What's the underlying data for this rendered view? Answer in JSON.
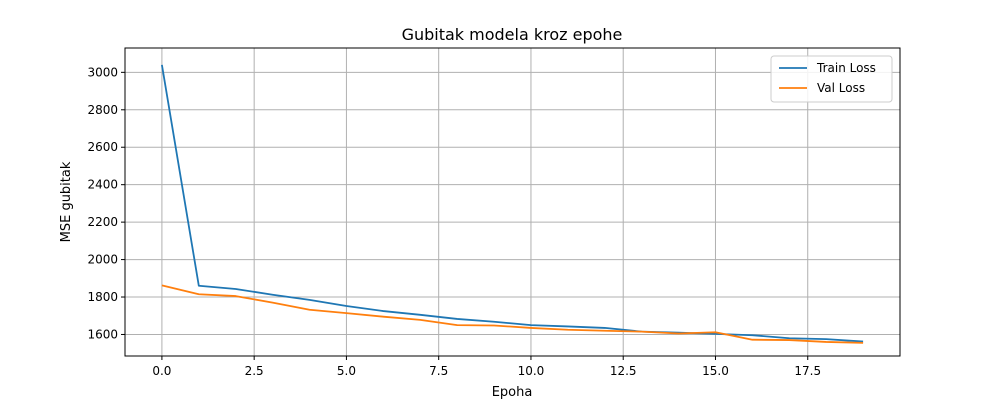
{
  "chart_data": {
    "type": "line",
    "title": "Gubitak modela kroz epohe",
    "xlabel": "Epoha",
    "ylabel": "MSE gubitak",
    "xlim": [
      -1,
      20
    ],
    "ylim": [
      1485,
      3130
    ],
    "xticks": [
      0,
      2.5,
      5,
      7.5,
      10,
      12.5,
      15,
      17.5
    ],
    "xtick_labels": [
      "0.0",
      "2.5",
      "5.0",
      "7.5",
      "10.0",
      "12.5",
      "15.0",
      "17.5"
    ],
    "yticks": [
      1600,
      1800,
      2000,
      2200,
      2400,
      2600,
      2800,
      3000
    ],
    "ytick_labels": [
      "1600",
      "1800",
      "2000",
      "2200",
      "2400",
      "2600",
      "2800",
      "3000"
    ],
    "grid": true,
    "legend_position": "top-right",
    "x": [
      0,
      1,
      2,
      3,
      4,
      5,
      6,
      7,
      8,
      9,
      10,
      11,
      12,
      13,
      14,
      15,
      16,
      17,
      18,
      19
    ],
    "series": [
      {
        "name": "Train Loss",
        "color": "#1f77b4",
        "values": [
          3040,
          1860,
          1843,
          1812,
          1785,
          1752,
          1725,
          1705,
          1683,
          1668,
          1650,
          1643,
          1635,
          1615,
          1610,
          1603,
          1596,
          1580,
          1575,
          1562
        ]
      },
      {
        "name": "Val Loss",
        "color": "#ff7f0e",
        "values": [
          1862,
          1815,
          1805,
          1770,
          1732,
          1714,
          1695,
          1678,
          1650,
          1648,
          1635,
          1625,
          1620,
          1615,
          1605,
          1612,
          1572,
          1570,
          1560,
          1555
        ]
      }
    ]
  }
}
